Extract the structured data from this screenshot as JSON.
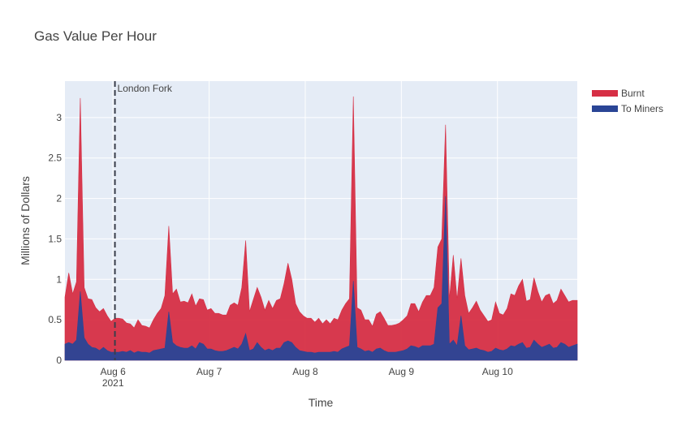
{
  "chart_data": {
    "type": "area",
    "title": "Gas Value Per Hour",
    "xlabel": "Time",
    "ylabel": "Millions of Dollars",
    "x_start": "2021-08-05 12:00",
    "x_end": "2021-08-10 20:00",
    "xlim_days": [
      5.5,
      10.83
    ],
    "ylim": [
      0,
      3.45
    ],
    "y_ticks": [
      0,
      0.5,
      1,
      1.5,
      2,
      2.5,
      3
    ],
    "y_tick_labels": [
      "0",
      "0.5",
      "1",
      "1.5",
      "2",
      "2.5",
      "3"
    ],
    "x_ticks": [
      6,
      7,
      8,
      9,
      10
    ],
    "x_tick_labels": [
      "Aug 6",
      "Aug 7",
      "Aug 8",
      "Aug 9",
      "Aug 10"
    ],
    "x_year_label": "2021",
    "grid": true,
    "legend_position": "top-right",
    "series": [
      {
        "name": "Burnt",
        "color": "#d62f45",
        "points": [
          [
            5.5,
            0.78
          ],
          [
            5.54,
            1.08
          ],
          [
            5.58,
            0.82
          ],
          [
            5.62,
            0.97
          ],
          [
            5.66,
            3.24
          ],
          [
            5.7,
            0.9
          ],
          [
            5.74,
            0.76
          ],
          [
            5.78,
            0.75
          ],
          [
            5.82,
            0.65
          ],
          [
            5.86,
            0.6
          ],
          [
            5.9,
            0.64
          ],
          [
            5.94,
            0.55
          ],
          [
            5.98,
            0.48
          ],
          [
            6.02,
            0.52
          ],
          [
            6.06,
            0.52
          ],
          [
            6.1,
            0.51
          ],
          [
            6.14,
            0.46
          ],
          [
            6.18,
            0.45
          ],
          [
            6.22,
            0.4
          ],
          [
            6.26,
            0.5
          ],
          [
            6.3,
            0.43
          ],
          [
            6.34,
            0.42
          ],
          [
            6.38,
            0.4
          ],
          [
            6.42,
            0.5
          ],
          [
            6.46,
            0.58
          ],
          [
            6.5,
            0.64
          ],
          [
            6.54,
            0.8
          ],
          [
            6.58,
            1.66
          ],
          [
            6.62,
            0.82
          ],
          [
            6.66,
            0.88
          ],
          [
            6.7,
            0.72
          ],
          [
            6.74,
            0.73
          ],
          [
            6.78,
            0.71
          ],
          [
            6.82,
            0.82
          ],
          [
            6.86,
            0.67
          ],
          [
            6.9,
            0.76
          ],
          [
            6.94,
            0.75
          ],
          [
            6.98,
            0.62
          ],
          [
            7.02,
            0.64
          ],
          [
            7.06,
            0.58
          ],
          [
            7.1,
            0.58
          ],
          [
            7.14,
            0.56
          ],
          [
            7.18,
            0.56
          ],
          [
            7.22,
            0.68
          ],
          [
            7.26,
            0.71
          ],
          [
            7.3,
            0.68
          ],
          [
            7.34,
            0.9
          ],
          [
            7.38,
            1.48
          ],
          [
            7.42,
            0.6
          ],
          [
            7.46,
            0.75
          ],
          [
            7.5,
            0.9
          ],
          [
            7.54,
            0.78
          ],
          [
            7.58,
            0.62
          ],
          [
            7.62,
            0.74
          ],
          [
            7.66,
            0.64
          ],
          [
            7.7,
            0.74
          ],
          [
            7.74,
            0.76
          ],
          [
            7.78,
            0.95
          ],
          [
            7.82,
            1.2
          ],
          [
            7.86,
            1.0
          ],
          [
            7.9,
            0.7
          ],
          [
            7.94,
            0.6
          ],
          [
            7.98,
            0.55
          ],
          [
            8.02,
            0.52
          ],
          [
            8.06,
            0.52
          ],
          [
            8.1,
            0.47
          ],
          [
            8.14,
            0.52
          ],
          [
            8.18,
            0.45
          ],
          [
            8.22,
            0.5
          ],
          [
            8.26,
            0.45
          ],
          [
            8.3,
            0.52
          ],
          [
            8.34,
            0.5
          ],
          [
            8.38,
            0.62
          ],
          [
            8.42,
            0.7
          ],
          [
            8.46,
            0.76
          ],
          [
            8.5,
            3.26
          ],
          [
            8.54,
            0.65
          ],
          [
            8.58,
            0.62
          ],
          [
            8.62,
            0.5
          ],
          [
            8.66,
            0.5
          ],
          [
            8.7,
            0.42
          ],
          [
            8.74,
            0.57
          ],
          [
            8.78,
            0.6
          ],
          [
            8.82,
            0.52
          ],
          [
            8.86,
            0.43
          ],
          [
            8.9,
            0.43
          ],
          [
            8.94,
            0.44
          ],
          [
            8.98,
            0.46
          ],
          [
            9.02,
            0.5
          ],
          [
            9.06,
            0.55
          ],
          [
            9.1,
            0.7
          ],
          [
            9.14,
            0.7
          ],
          [
            9.18,
            0.6
          ],
          [
            9.22,
            0.72
          ],
          [
            9.26,
            0.8
          ],
          [
            9.3,
            0.8
          ],
          [
            9.34,
            0.9
          ],
          [
            9.38,
            1.4
          ],
          [
            9.42,
            1.5
          ],
          [
            9.46,
            2.91
          ],
          [
            9.5,
            0.75
          ],
          [
            9.54,
            1.3
          ],
          [
            9.58,
            0.75
          ],
          [
            9.62,
            1.26
          ],
          [
            9.66,
            0.8
          ],
          [
            9.7,
            0.58
          ],
          [
            9.74,
            0.65
          ],
          [
            9.78,
            0.73
          ],
          [
            9.82,
            0.62
          ],
          [
            9.86,
            0.55
          ],
          [
            9.9,
            0.48
          ],
          [
            9.94,
            0.5
          ],
          [
            9.98,
            0.72
          ],
          [
            10.02,
            0.58
          ],
          [
            10.06,
            0.56
          ],
          [
            10.1,
            0.64
          ],
          [
            10.14,
            0.82
          ],
          [
            10.18,
            0.8
          ],
          [
            10.22,
            0.92
          ],
          [
            10.26,
            1.0
          ],
          [
            10.3,
            0.73
          ],
          [
            10.34,
            0.75
          ],
          [
            10.38,
            1.02
          ],
          [
            10.42,
            0.85
          ],
          [
            10.46,
            0.72
          ],
          [
            10.5,
            0.8
          ],
          [
            10.54,
            0.82
          ],
          [
            10.58,
            0.7
          ],
          [
            10.62,
            0.74
          ],
          [
            10.66,
            0.88
          ],
          [
            10.7,
            0.8
          ],
          [
            10.74,
            0.72
          ],
          [
            10.78,
            0.74
          ],
          [
            10.83,
            0.74
          ]
        ]
      },
      {
        "name": "To Miners",
        "color": "#2a4596",
        "points": [
          [
            5.5,
            0.2
          ],
          [
            5.54,
            0.22
          ],
          [
            5.58,
            0.2
          ],
          [
            5.62,
            0.25
          ],
          [
            5.66,
            0.85
          ],
          [
            5.7,
            0.28
          ],
          [
            5.74,
            0.2
          ],
          [
            5.78,
            0.16
          ],
          [
            5.82,
            0.15
          ],
          [
            5.86,
            0.12
          ],
          [
            5.9,
            0.16
          ],
          [
            5.94,
            0.12
          ],
          [
            5.98,
            0.1
          ],
          [
            6.02,
            0.1
          ],
          [
            6.06,
            0.1
          ],
          [
            6.1,
            0.11
          ],
          [
            6.14,
            0.1
          ],
          [
            6.18,
            0.12
          ],
          [
            6.22,
            0.09
          ],
          [
            6.26,
            0.11
          ],
          [
            6.3,
            0.1
          ],
          [
            6.34,
            0.1
          ],
          [
            6.38,
            0.09
          ],
          [
            6.42,
            0.12
          ],
          [
            6.46,
            0.13
          ],
          [
            6.5,
            0.14
          ],
          [
            6.54,
            0.15
          ],
          [
            6.58,
            0.6
          ],
          [
            6.62,
            0.22
          ],
          [
            6.66,
            0.18
          ],
          [
            6.7,
            0.16
          ],
          [
            6.74,
            0.15
          ],
          [
            6.78,
            0.15
          ],
          [
            6.82,
            0.18
          ],
          [
            6.86,
            0.14
          ],
          [
            6.9,
            0.22
          ],
          [
            6.94,
            0.2
          ],
          [
            6.98,
            0.14
          ],
          [
            7.02,
            0.14
          ],
          [
            7.06,
            0.12
          ],
          [
            7.1,
            0.11
          ],
          [
            7.14,
            0.11
          ],
          [
            7.18,
            0.12
          ],
          [
            7.22,
            0.14
          ],
          [
            7.26,
            0.16
          ],
          [
            7.3,
            0.14
          ],
          [
            7.34,
            0.2
          ],
          [
            7.38,
            0.33
          ],
          [
            7.42,
            0.12
          ],
          [
            7.46,
            0.14
          ],
          [
            7.5,
            0.22
          ],
          [
            7.54,
            0.16
          ],
          [
            7.58,
            0.12
          ],
          [
            7.62,
            0.14
          ],
          [
            7.66,
            0.12
          ],
          [
            7.7,
            0.15
          ],
          [
            7.74,
            0.15
          ],
          [
            7.78,
            0.22
          ],
          [
            7.82,
            0.24
          ],
          [
            7.86,
            0.22
          ],
          [
            7.9,
            0.16
          ],
          [
            7.94,
            0.12
          ],
          [
            7.98,
            0.11
          ],
          [
            8.02,
            0.1
          ],
          [
            8.06,
            0.1
          ],
          [
            8.1,
            0.09
          ],
          [
            8.14,
            0.1
          ],
          [
            8.18,
            0.1
          ],
          [
            8.22,
            0.1
          ],
          [
            8.26,
            0.1
          ],
          [
            8.3,
            0.11
          ],
          [
            8.34,
            0.1
          ],
          [
            8.38,
            0.14
          ],
          [
            8.42,
            0.16
          ],
          [
            8.46,
            0.18
          ],
          [
            8.5,
            0.98
          ],
          [
            8.54,
            0.16
          ],
          [
            8.58,
            0.14
          ],
          [
            8.62,
            0.11
          ],
          [
            8.66,
            0.12
          ],
          [
            8.7,
            0.1
          ],
          [
            8.74,
            0.14
          ],
          [
            8.78,
            0.15
          ],
          [
            8.82,
            0.12
          ],
          [
            8.86,
            0.1
          ],
          [
            8.9,
            0.1
          ],
          [
            8.94,
            0.1
          ],
          [
            8.98,
            0.11
          ],
          [
            9.02,
            0.12
          ],
          [
            9.06,
            0.14
          ],
          [
            9.1,
            0.18
          ],
          [
            9.14,
            0.17
          ],
          [
            9.18,
            0.15
          ],
          [
            9.22,
            0.18
          ],
          [
            9.26,
            0.18
          ],
          [
            9.3,
            0.18
          ],
          [
            9.34,
            0.2
          ],
          [
            9.38,
            0.65
          ],
          [
            9.42,
            0.7
          ],
          [
            9.46,
            2.03
          ],
          [
            9.5,
            0.2
          ],
          [
            9.54,
            0.25
          ],
          [
            9.58,
            0.18
          ],
          [
            9.62,
            0.55
          ],
          [
            9.66,
            0.18
          ],
          [
            9.7,
            0.13
          ],
          [
            9.74,
            0.14
          ],
          [
            9.78,
            0.15
          ],
          [
            9.82,
            0.13
          ],
          [
            9.86,
            0.12
          ],
          [
            9.9,
            0.1
          ],
          [
            9.94,
            0.11
          ],
          [
            9.98,
            0.15
          ],
          [
            10.02,
            0.13
          ],
          [
            10.06,
            0.12
          ],
          [
            10.1,
            0.14
          ],
          [
            10.14,
            0.18
          ],
          [
            10.18,
            0.17
          ],
          [
            10.22,
            0.2
          ],
          [
            10.26,
            0.22
          ],
          [
            10.3,
            0.15
          ],
          [
            10.34,
            0.16
          ],
          [
            10.38,
            0.25
          ],
          [
            10.42,
            0.2
          ],
          [
            10.46,
            0.16
          ],
          [
            10.5,
            0.18
          ],
          [
            10.54,
            0.2
          ],
          [
            10.58,
            0.15
          ],
          [
            10.62,
            0.16
          ],
          [
            10.66,
            0.22
          ],
          [
            10.7,
            0.2
          ],
          [
            10.74,
            0.16
          ],
          [
            10.78,
            0.18
          ],
          [
            10.83,
            0.2
          ]
        ]
      }
    ],
    "annotations": [
      {
        "type": "vline",
        "x_day": 6.02,
        "label": "London Fork",
        "style": "dashed"
      }
    ]
  }
}
